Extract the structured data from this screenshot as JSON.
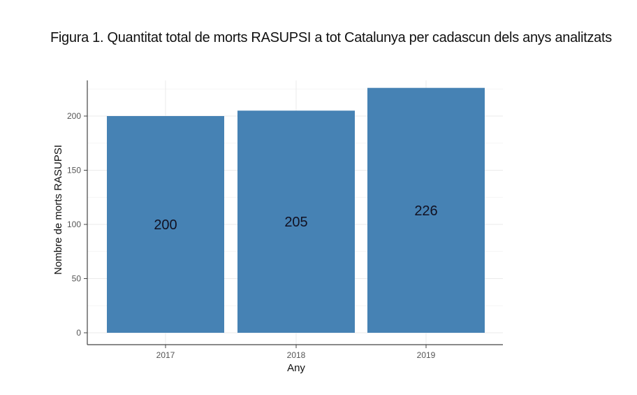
{
  "figure": {
    "title": "Figura 1. Quantitat total de morts RASUPSI a tot Catalunya per cadascun dels anys analitzats"
  },
  "chart_data": {
    "type": "bar",
    "title": "Figura 1. Quantitat total de morts RASUPSI a tot Catalunya per cadascun dels anys analitzats",
    "categories": [
      "2017",
      "2018",
      "2019"
    ],
    "values": [
      200,
      205,
      226
    ],
    "data_labels": [
      "200",
      "205",
      "226"
    ],
    "xlabel": "Any",
    "ylabel": "Nombre de morts RASUPSI",
    "ylim": [
      0,
      232
    ],
    "yticks": [
      0,
      50,
      100,
      150,
      200
    ],
    "grid": true,
    "legend": null,
    "bar_color": "#4682b4"
  }
}
